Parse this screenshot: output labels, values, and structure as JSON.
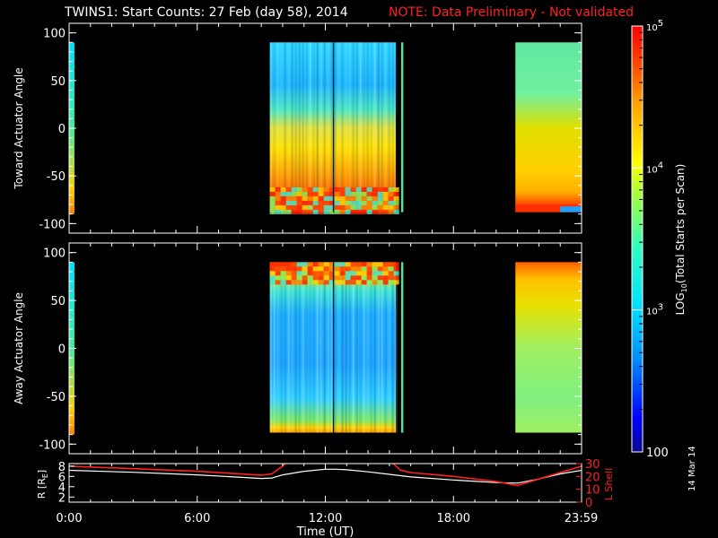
{
  "title": "TWINS1: Start Counts: 27 Feb (day  58), 2014",
  "note": "NOTE: Data Preliminary - Not validated",
  "datestamp": "14 Mar 14",
  "chart_data": [
    {
      "type": "heatmap",
      "ylabel": "Toward Actuator Angle",
      "ylim": [
        -110,
        110
      ],
      "yticks": [
        -100,
        -50,
        0,
        50,
        100
      ],
      "xlim": [
        0,
        24
      ],
      "data_blocks": [
        {
          "x": [
            0,
            0.25
          ],
          "y": [
            -90,
            90
          ],
          "description": "narrow strip"
        },
        {
          "x": [
            9.4,
            15.3
          ],
          "y": [
            -88,
            90
          ]
        },
        {
          "x": [
            15.55,
            15.65
          ],
          "y": [
            -88,
            90
          ]
        },
        {
          "x": [
            20.9,
            24
          ],
          "y": [
            -88,
            90
          ]
        }
      ]
    },
    {
      "type": "heatmap",
      "ylabel": "Away Actuator Angle",
      "ylim": [
        -110,
        110
      ],
      "yticks": [
        -100,
        -50,
        0,
        50,
        100
      ],
      "xlim": [
        0,
        24
      ],
      "data_blocks": [
        {
          "x": [
            0,
            0.25
          ],
          "y": [
            -90,
            90
          ]
        },
        {
          "x": [
            9.4,
            15.3
          ],
          "y": [
            -88,
            90
          ]
        },
        {
          "x": [
            15.55,
            15.65
          ],
          "y": [
            -88,
            90
          ]
        },
        {
          "x": [
            20.9,
            24
          ],
          "y": [
            -88,
            90
          ]
        }
      ]
    },
    {
      "type": "line",
      "ylabel": "R [RE]",
      "ylabel_parts": {
        "main": "R [R",
        "sub": "E",
        "close": "]"
      },
      "y2label": "L Shell",
      "xlabel": "Time (UT)",
      "xticks": [
        "0:00",
        "6:00",
        "12:00",
        "18:00",
        "23:59"
      ],
      "xtick_hours": [
        0,
        6,
        12,
        18,
        23.98
      ],
      "xlim": [
        0,
        24
      ],
      "ylim": [
        1,
        8.5
      ],
      "yticks": [
        2,
        4,
        6,
        8
      ],
      "y2lim": [
        0,
        30
      ],
      "y2ticks": [
        0,
        10,
        20,
        30
      ],
      "series": [
        {
          "color": "#ffffff",
          "x": [
            0,
            3,
            6,
            9,
            9.5,
            10,
            11,
            12,
            12.5,
            13,
            14,
            15,
            16,
            18,
            20,
            21,
            22,
            23,
            24
          ],
          "y": [
            7.2,
            6.8,
            6.3,
            5.6,
            5.7,
            6.3,
            7.0,
            7.4,
            7.4,
            7.3,
            6.9,
            6.4,
            5.9,
            5.3,
            4.8,
            4.7,
            5.5,
            6.5,
            7.2
          ]
        },
        {
          "color": "#ff2020",
          "axis": "y2",
          "x": [
            0,
            3,
            6,
            9,
            9.5,
            10,
            10.3,
            10.6,
            14.6,
            15,
            15.5,
            16,
            18,
            20,
            21,
            22,
            23,
            24
          ],
          "y": [
            28,
            26,
            24,
            21,
            22,
            28,
            33,
            40,
            40,
            33,
            25,
            23,
            20,
            16,
            13,
            18,
            23,
            28
          ]
        }
      ]
    }
  ],
  "colorbar": {
    "label": "LOG10(Total Starts per Scan)",
    "label_parts": {
      "pre": "LOG",
      "sub": "10",
      "post": "(Total Starts per Scan)"
    },
    "ticks": [
      {
        "value": 100,
        "label": "100"
      },
      {
        "value": 1000,
        "label": "10",
        "sup": "3"
      },
      {
        "value": 10000,
        "label": "10",
        "sup": "4"
      },
      {
        "value": 100000,
        "label": "10",
        "sup": "5"
      }
    ],
    "range": [
      100,
      100000
    ],
    "scale": "log"
  }
}
